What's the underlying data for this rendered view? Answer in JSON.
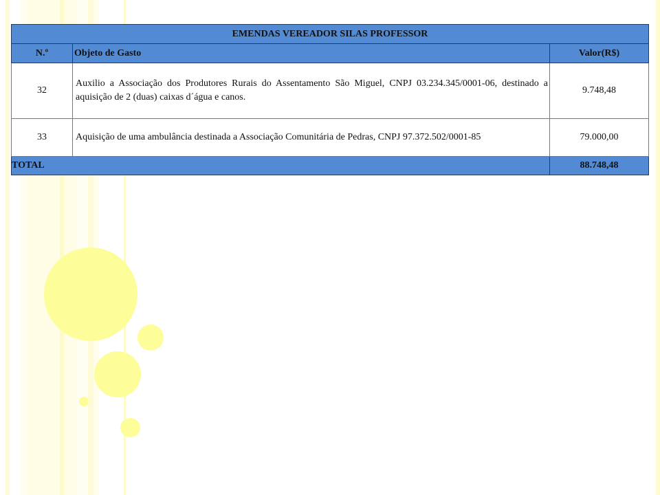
{
  "table": {
    "title": "EMENDAS VEREADOR SILAS PROFESSOR",
    "headers": {
      "num": "N.º",
      "object": "Objeto de Gasto",
      "value": "Valor(R$)"
    },
    "rows": [
      {
        "num": "32",
        "object": "Auxilio a Associação dos Produtores Rurais do Assentamento São Miguel, CNPJ 03.234.345/0001-06, destinado a aquisição de 2 (duas) caixas d´água e canos.",
        "value": "9.748,48"
      },
      {
        "num": "33",
        "object": "Aquisição de uma ambulância destinada a Associação Comunitária de Pedras, CNPJ 97.372.502/0001-85",
        "value": "79.000,00"
      }
    ],
    "total_label": "TOTAL",
    "total_value": "88.748,48"
  },
  "colors": {
    "header_blue": "#528bd4",
    "decor_yellow": "#fdfd9a"
  }
}
